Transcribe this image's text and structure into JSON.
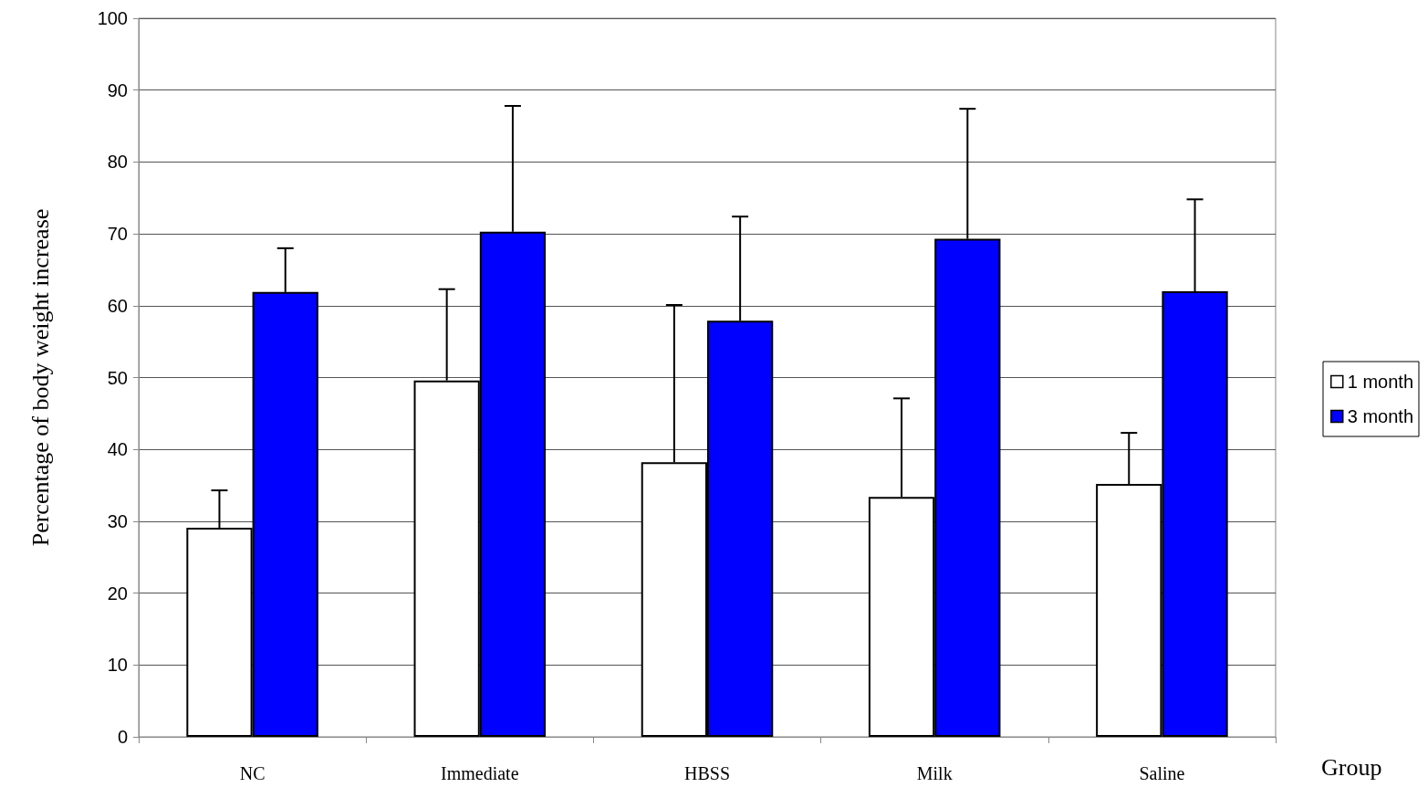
{
  "chart_data": {
    "type": "bar",
    "xlabel": "Group",
    "ylabel": "Percentage of body weight increase",
    "categories": [
      "NC",
      "Immediate",
      "HBSS",
      "Milk",
      "Saline"
    ],
    "series": [
      {
        "name": "1 month",
        "color": "#ffffff",
        "values": [
          29.1,
          49.6,
          38.2,
          33.4,
          35.2
        ],
        "errors": [
          [
            29.1,
            34.3
          ],
          [
            49.6,
            62.3
          ],
          [
            38.2,
            60.1
          ],
          [
            33.4,
            47.1
          ],
          [
            35.2,
            42.3
          ]
        ]
      },
      {
        "name": "3 month",
        "color": "#0000ff",
        "values": [
          61.9,
          70.3,
          57.9,
          69.3,
          62.0
        ],
        "errors": [
          [
            61.9,
            68.0
          ],
          [
            70.3,
            87.8
          ],
          [
            57.9,
            72.4
          ],
          [
            69.3,
            87.4
          ],
          [
            62.0,
            74.8
          ]
        ]
      }
    ],
    "ylim": [
      0,
      100
    ],
    "yticks": [
      0,
      10,
      20,
      30,
      40,
      50,
      60,
      70,
      80,
      90,
      100
    ],
    "grid": "y",
    "legend": "right"
  }
}
